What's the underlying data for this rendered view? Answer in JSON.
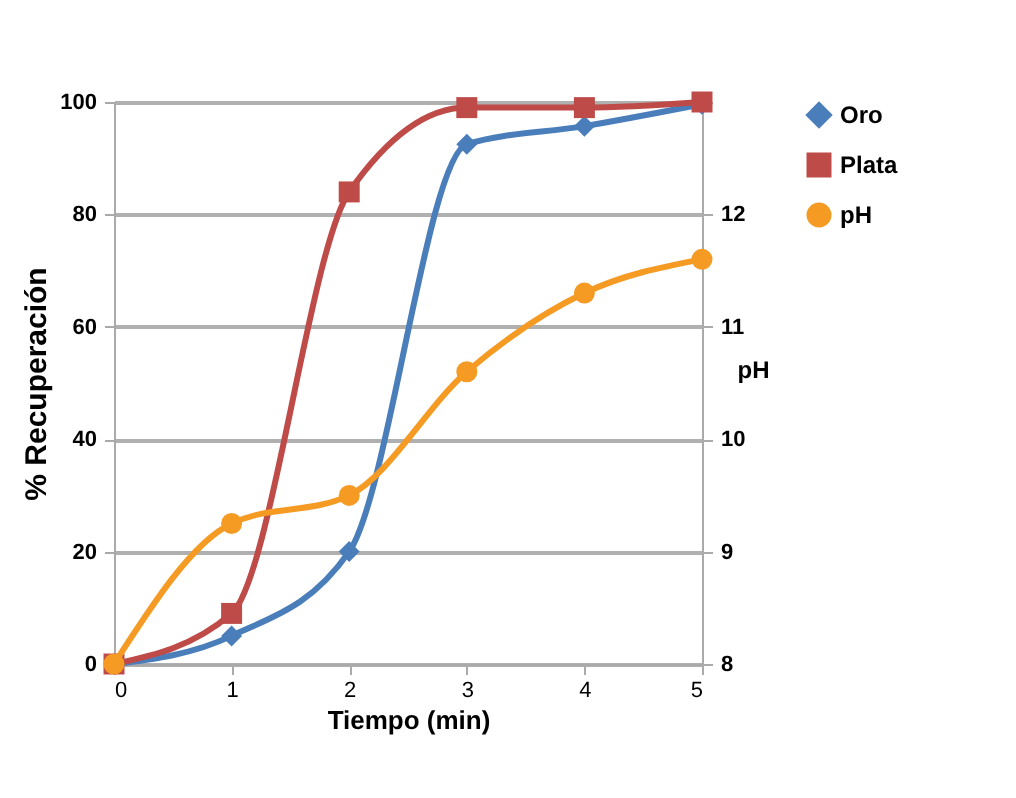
{
  "chart_data": {
    "type": "line",
    "xlabel": "Tiempo    (min)",
    "ylabel": "% Recuperación",
    "y2label": "pH",
    "x": [
      0,
      1,
      2,
      3,
      4,
      5
    ],
    "series": [
      {
        "name": "Oro",
        "color": "#4a7ebb",
        "marker": "diamond",
        "values": [
          0,
          5,
          20,
          92.5,
          95.7,
          99.6
        ]
      },
      {
        "name": "Plata",
        "color": "#be4b48",
        "marker": "square",
        "values": [
          0,
          9,
          84,
          99,
          99,
          100
        ]
      },
      {
        "name": "pH",
        "color": "#f59a23",
        "marker": "circle",
        "axis": "y2",
        "values": [
          8.0,
          9.25,
          9.5,
          10.6,
          11.3,
          11.6
        ]
      }
    ],
    "xlim": [
      0,
      5
    ],
    "xticks": [
      0,
      1,
      2,
      3,
      4,
      5
    ],
    "ylim": [
      0,
      100
    ],
    "yticks": [
      0,
      20,
      40,
      60,
      80,
      100
    ],
    "y2lim": [
      8,
      13
    ],
    "y2ticks": [
      8,
      9,
      10,
      11,
      12,
      {
        "value": 13,
        "label": null
      }
    ],
    "grid": "y",
    "legend": "right"
  }
}
